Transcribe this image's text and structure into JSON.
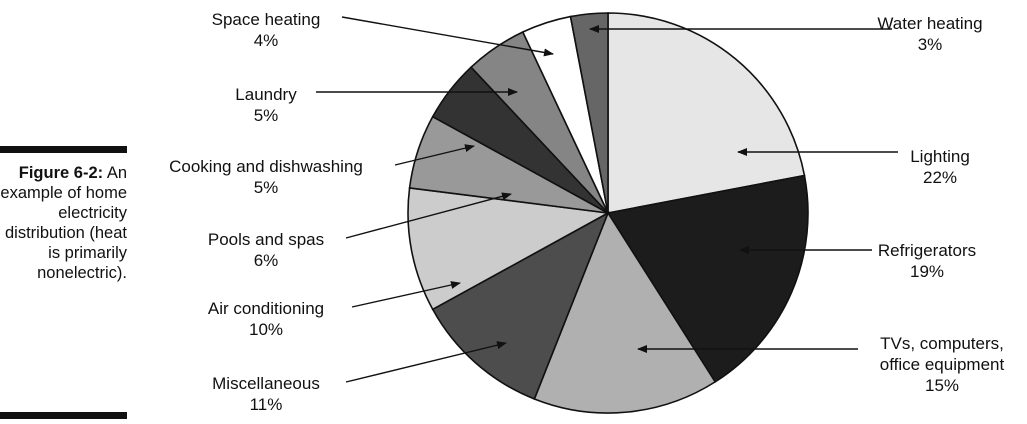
{
  "figure": {
    "number": "Figure 6-2:",
    "caption": "An example of home electricity distribution (heat is primarily nonelectric)."
  },
  "chart_data": {
    "type": "pie",
    "start": "top, clockwise",
    "slices": [
      {
        "label": "Lighting",
        "value": 22,
        "display": "22%",
        "color": "#e6e6e6"
      },
      {
        "label": "Refrigerators",
        "value": 19,
        "display": "19%",
        "color": "#1c1c1c"
      },
      {
        "label": "TVs, computers, office equipment",
        "value": 15,
        "display": "15%",
        "color": "#b0b0b0"
      },
      {
        "label": "Miscellaneous",
        "value": 11,
        "display": "11%",
        "color": "#4d4d4d"
      },
      {
        "label": "Air conditioning",
        "value": 10,
        "display": "10%",
        "color": "#cccccc"
      },
      {
        "label": "Pools and spas",
        "value": 6,
        "display": "6%",
        "color": "#999999"
      },
      {
        "label": "Cooking and dishwashing",
        "value": 5,
        "display": "5%",
        "color": "#333333"
      },
      {
        "label": "Laundry",
        "value": 5,
        "display": "5%",
        "color": "#858585"
      },
      {
        "label": "Space heating",
        "value": 4,
        "display": "4%",
        "color": "#ffffff"
      },
      {
        "label": "Water heating",
        "value": 3,
        "display": "3%",
        "color": "#666666"
      }
    ],
    "label_lines": [
      [
        "Lighting",
        "22%"
      ],
      [
        "Refrigerators",
        "19%"
      ],
      [
        "TVs, computers,",
        "office equipment",
        "15%"
      ],
      [
        "Miscellaneous",
        "11%"
      ],
      [
        "Air conditioning",
        "10%"
      ],
      [
        "Pools and spas",
        "6%"
      ],
      [
        "Cooking and dishwashing",
        "5%"
      ],
      [
        "Laundry",
        "5%"
      ],
      [
        "Space heating",
        "4%"
      ],
      [
        "Water heating",
        "3%"
      ]
    ]
  }
}
